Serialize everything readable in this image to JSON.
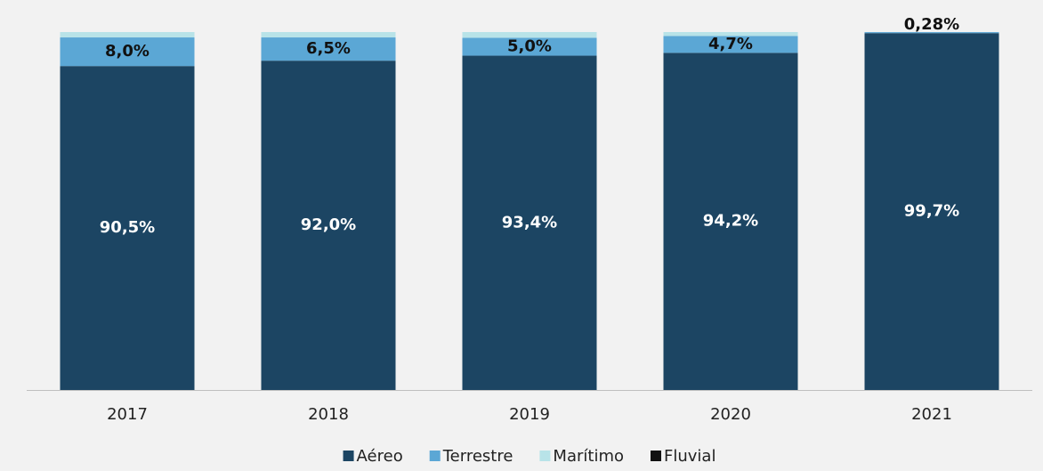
{
  "chart_data": {
    "type": "stacked_bar",
    "categories": [
      "2017",
      "2018",
      "2019",
      "2020",
      "2021"
    ],
    "ylim": [
      0,
      100
    ],
    "series": [
      {
        "name": "Aéreo",
        "color": "#1c4563",
        "values": [
          90.5,
          92.0,
          93.4,
          94.2,
          99.7
        ],
        "value_labels": [
          "90,5%",
          "92,0%",
          "93,4%",
          "94,2%",
          "99,7%"
        ]
      },
      {
        "name": "Terrestre",
        "color": "#5ba7d5",
        "values": [
          8.0,
          6.5,
          5.0,
          4.7,
          0.28
        ],
        "value_labels": [
          "8,0%",
          "6,5%",
          "5,0%",
          "4,7%",
          "0,28%"
        ]
      },
      {
        "name": "Marítimo",
        "color": "#b8e3e8",
        "values": [
          1.5,
          1.5,
          1.6,
          1.1,
          0
        ]
      },
      {
        "name": "Fluvial",
        "color": "#111111",
        "values": [
          0,
          0,
          0,
          0,
          0
        ]
      }
    ]
  }
}
